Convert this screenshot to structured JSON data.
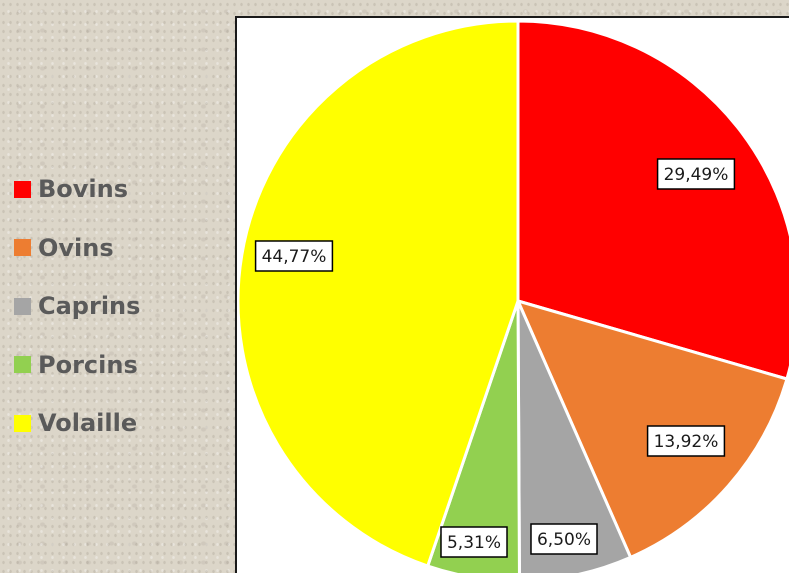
{
  "chart_data": {
    "type": "pie",
    "categories": [
      "Bovins",
      "Ovins",
      "Caprins",
      "Porcins",
      "Volaille"
    ],
    "values": [
      29.49,
      13.92,
      6.5,
      5.31,
      44.77
    ],
    "labels": [
      "29,49%",
      "13,92%",
      "6,50%",
      "5,31%",
      "44,77%"
    ],
    "colors": [
      "#ff0000",
      "#ed7d31",
      "#a5a5a5",
      "#92d050",
      "#ffff00"
    ],
    "legend_position": "left",
    "start_angle": "12 o'clock, clockwise"
  },
  "legend": {
    "items": [
      {
        "label": "Bovins",
        "color": "#ff0000"
      },
      {
        "label": "Ovins",
        "color": "#ed7d31"
      },
      {
        "label": "Caprins",
        "color": "#a5a5a5"
      },
      {
        "label": "Porcins",
        "color": "#92d050"
      },
      {
        "label": "Volaille",
        "color": "#ffff00"
      }
    ]
  }
}
